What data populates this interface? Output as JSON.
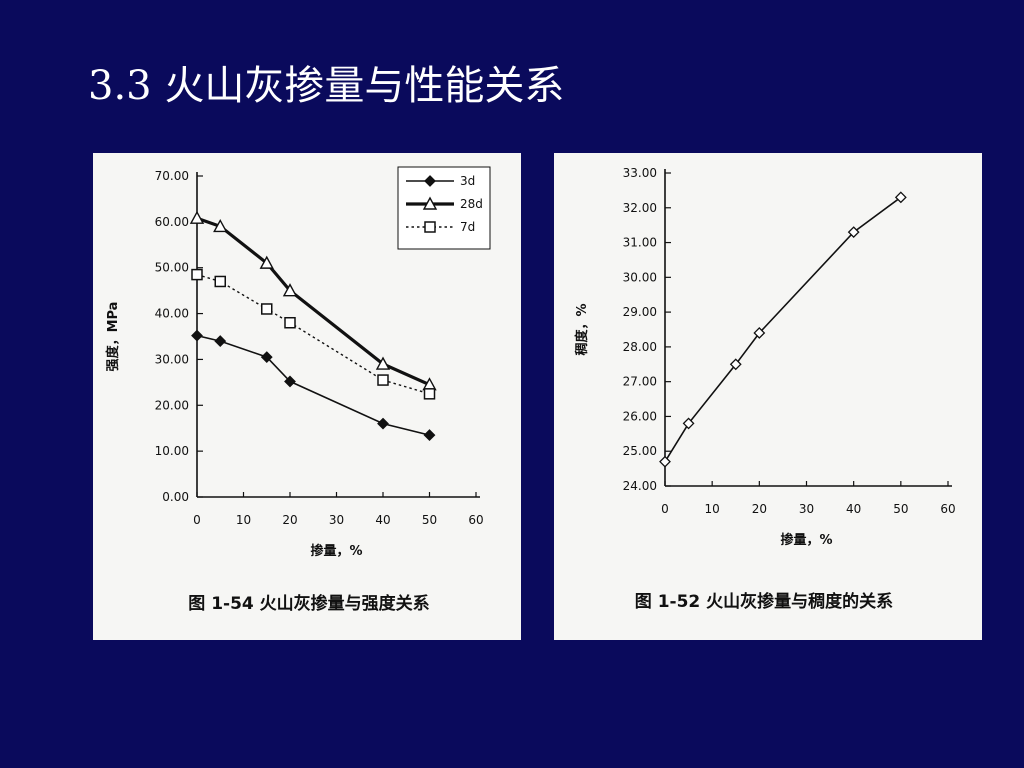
{
  "slide": {
    "title": "3.3 火山灰掺量与性能关系",
    "background": "#0a0a5c"
  },
  "chart_data": [
    {
      "type": "line",
      "caption": "图 1-54  火山灰掺量与强度关系",
      "xlabel": "掺量，%",
      "ylabel": "强度，MPa",
      "xlim": [
        0,
        60
      ],
      "ylim": [
        0,
        70
      ],
      "x_ticks": [
        "0",
        "10",
        "20",
        "30",
        "40",
        "50",
        "60"
      ],
      "y_ticks": [
        "0.00",
        "10.00",
        "20.00",
        "30.00",
        "40.00",
        "50.00",
        "60.00",
        "70.00"
      ],
      "legend_position": "top-right",
      "series": [
        {
          "name": "3d",
          "marker": "diamond-filled",
          "line": "solid",
          "x": [
            0,
            5,
            15,
            20,
            40,
            50
          ],
          "y": [
            35.2,
            34.0,
            30.5,
            25.2,
            16.0,
            13.5
          ]
        },
        {
          "name": "28d",
          "marker": "triangle-open",
          "line": "thick",
          "x": [
            0,
            5,
            15,
            20,
            40,
            50
          ],
          "y": [
            60.8,
            59.0,
            51.0,
            45.0,
            29.0,
            24.5
          ]
        },
        {
          "name": "7d",
          "marker": "square-open",
          "line": "dotted",
          "x": [
            0,
            5,
            15,
            20,
            40,
            50
          ],
          "y": [
            48.5,
            47.0,
            41.0,
            38.0,
            25.5,
            22.5
          ]
        }
      ]
    },
    {
      "type": "line",
      "caption": "图 1-52    火山灰掺量与稠度的关系",
      "xlabel": "掺量，%",
      "ylabel": "稠度，%",
      "xlim": [
        0,
        60
      ],
      "ylim": [
        24,
        33
      ],
      "x_ticks": [
        "0",
        "10",
        "20",
        "30",
        "40",
        "50",
        "60"
      ],
      "y_ticks": [
        "24.00",
        "25.00",
        "26.00",
        "27.00",
        "28.00",
        "29.00",
        "30.00",
        "31.00",
        "32.00",
        "33.00"
      ],
      "series": [
        {
          "marker": "diamond-open",
          "line": "solid",
          "x": [
            0,
            5,
            15,
            20,
            40,
            50
          ],
          "y": [
            24.7,
            25.8,
            27.5,
            28.4,
            31.3,
            32.3
          ]
        }
      ]
    }
  ]
}
